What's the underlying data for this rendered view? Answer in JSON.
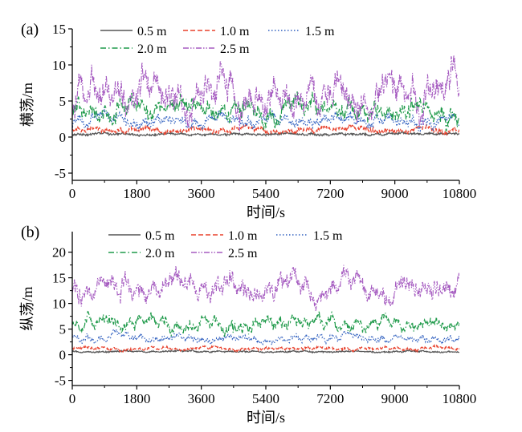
{
  "chart_data": [
    {
      "type": "line",
      "panel_label": "(a)",
      "xlabel": "时间/s",
      "ylabel": "横荡/m",
      "xlim": [
        0,
        10800
      ],
      "ylim": [
        -6,
        15
      ],
      "xticks": [
        0,
        1800,
        3600,
        5400,
        7200,
        9000,
        10800
      ],
      "yticks": [
        -5,
        0,
        5,
        10,
        15
      ],
      "legend_position": "top",
      "series": [
        {
          "name": "0.5 m",
          "color": "#555555",
          "dash": "solid",
          "mean": 0.4,
          "amp": 0.15,
          "noise": 0.1
        },
        {
          "name": "1.0 m",
          "color": "#e8412c",
          "dash": "dashed",
          "mean": 1.0,
          "amp": 0.4,
          "noise": 0.2
        },
        {
          "name": "1.5 m",
          "color": "#2f5fbf",
          "dash": "dotted",
          "mean": 2.3,
          "amp": 0.9,
          "noise": 0.35
        },
        {
          "name": "2.0 m",
          "color": "#1f9a4a",
          "dash": "dashdot",
          "mean": 3.6,
          "amp": 1.5,
          "noise": 0.5
        },
        {
          "name": "2.5 m",
          "color": "#a55bc0",
          "dash": "dashdotdot",
          "mean": 6.0,
          "amp": 2.8,
          "noise": 0.9
        }
      ]
    },
    {
      "type": "line",
      "panel_label": "(b)",
      "xlabel": "时间/s",
      "ylabel": "纵荡/m",
      "xlim": [
        0,
        10800
      ],
      "ylim": [
        -6,
        24
      ],
      "xticks": [
        0,
        1800,
        3600,
        5400,
        7200,
        9000,
        10800
      ],
      "yticks": [
        -5,
        0,
        5,
        10,
        15,
        20
      ],
      "legend_position": "top",
      "series": [
        {
          "name": "0.5 m",
          "color": "#555555",
          "dash": "solid",
          "mean": 0.6,
          "amp": 0.15,
          "noise": 0.1
        },
        {
          "name": "1.0 m",
          "color": "#e8412c",
          "dash": "dashed",
          "mean": 1.2,
          "amp": 0.3,
          "noise": 0.15
        },
        {
          "name": "1.5 m",
          "color": "#2f5fbf",
          "dash": "dotted",
          "mean": 3.2,
          "amp": 0.8,
          "noise": 0.3
        },
        {
          "name": "2.0 m",
          "color": "#1f9a4a",
          "dash": "dashdot",
          "mean": 6.0,
          "amp": 1.6,
          "noise": 0.45
        },
        {
          "name": "2.5 m",
          "color": "#a55bc0",
          "dash": "dashdotdot",
          "mean": 13.0,
          "amp": 2.2,
          "noise": 0.9
        }
      ]
    }
  ]
}
